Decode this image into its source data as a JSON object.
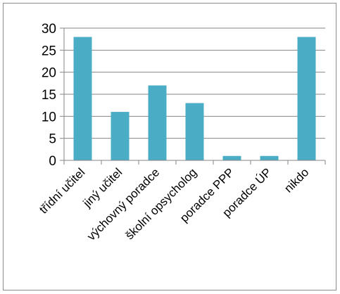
{
  "chart_data": {
    "type": "bar",
    "title": "",
    "xlabel": "",
    "ylabel": "",
    "categories": [
      "třídní učitel",
      "jiný učitel",
      "výchovný poradce",
      "školní opsycholog",
      "poradce PPP",
      "poradce ÚP",
      "nikdo"
    ],
    "values": [
      28,
      11,
      17,
      13,
      1,
      1,
      28
    ],
    "ylim": [
      0,
      30
    ],
    "yticks": [
      0,
      5,
      10,
      15,
      20,
      25,
      30
    ],
    "grid": true,
    "legend": "none",
    "colors": {
      "bar": "#4bacc6",
      "grid": "#868686",
      "axis": "#868686"
    }
  }
}
